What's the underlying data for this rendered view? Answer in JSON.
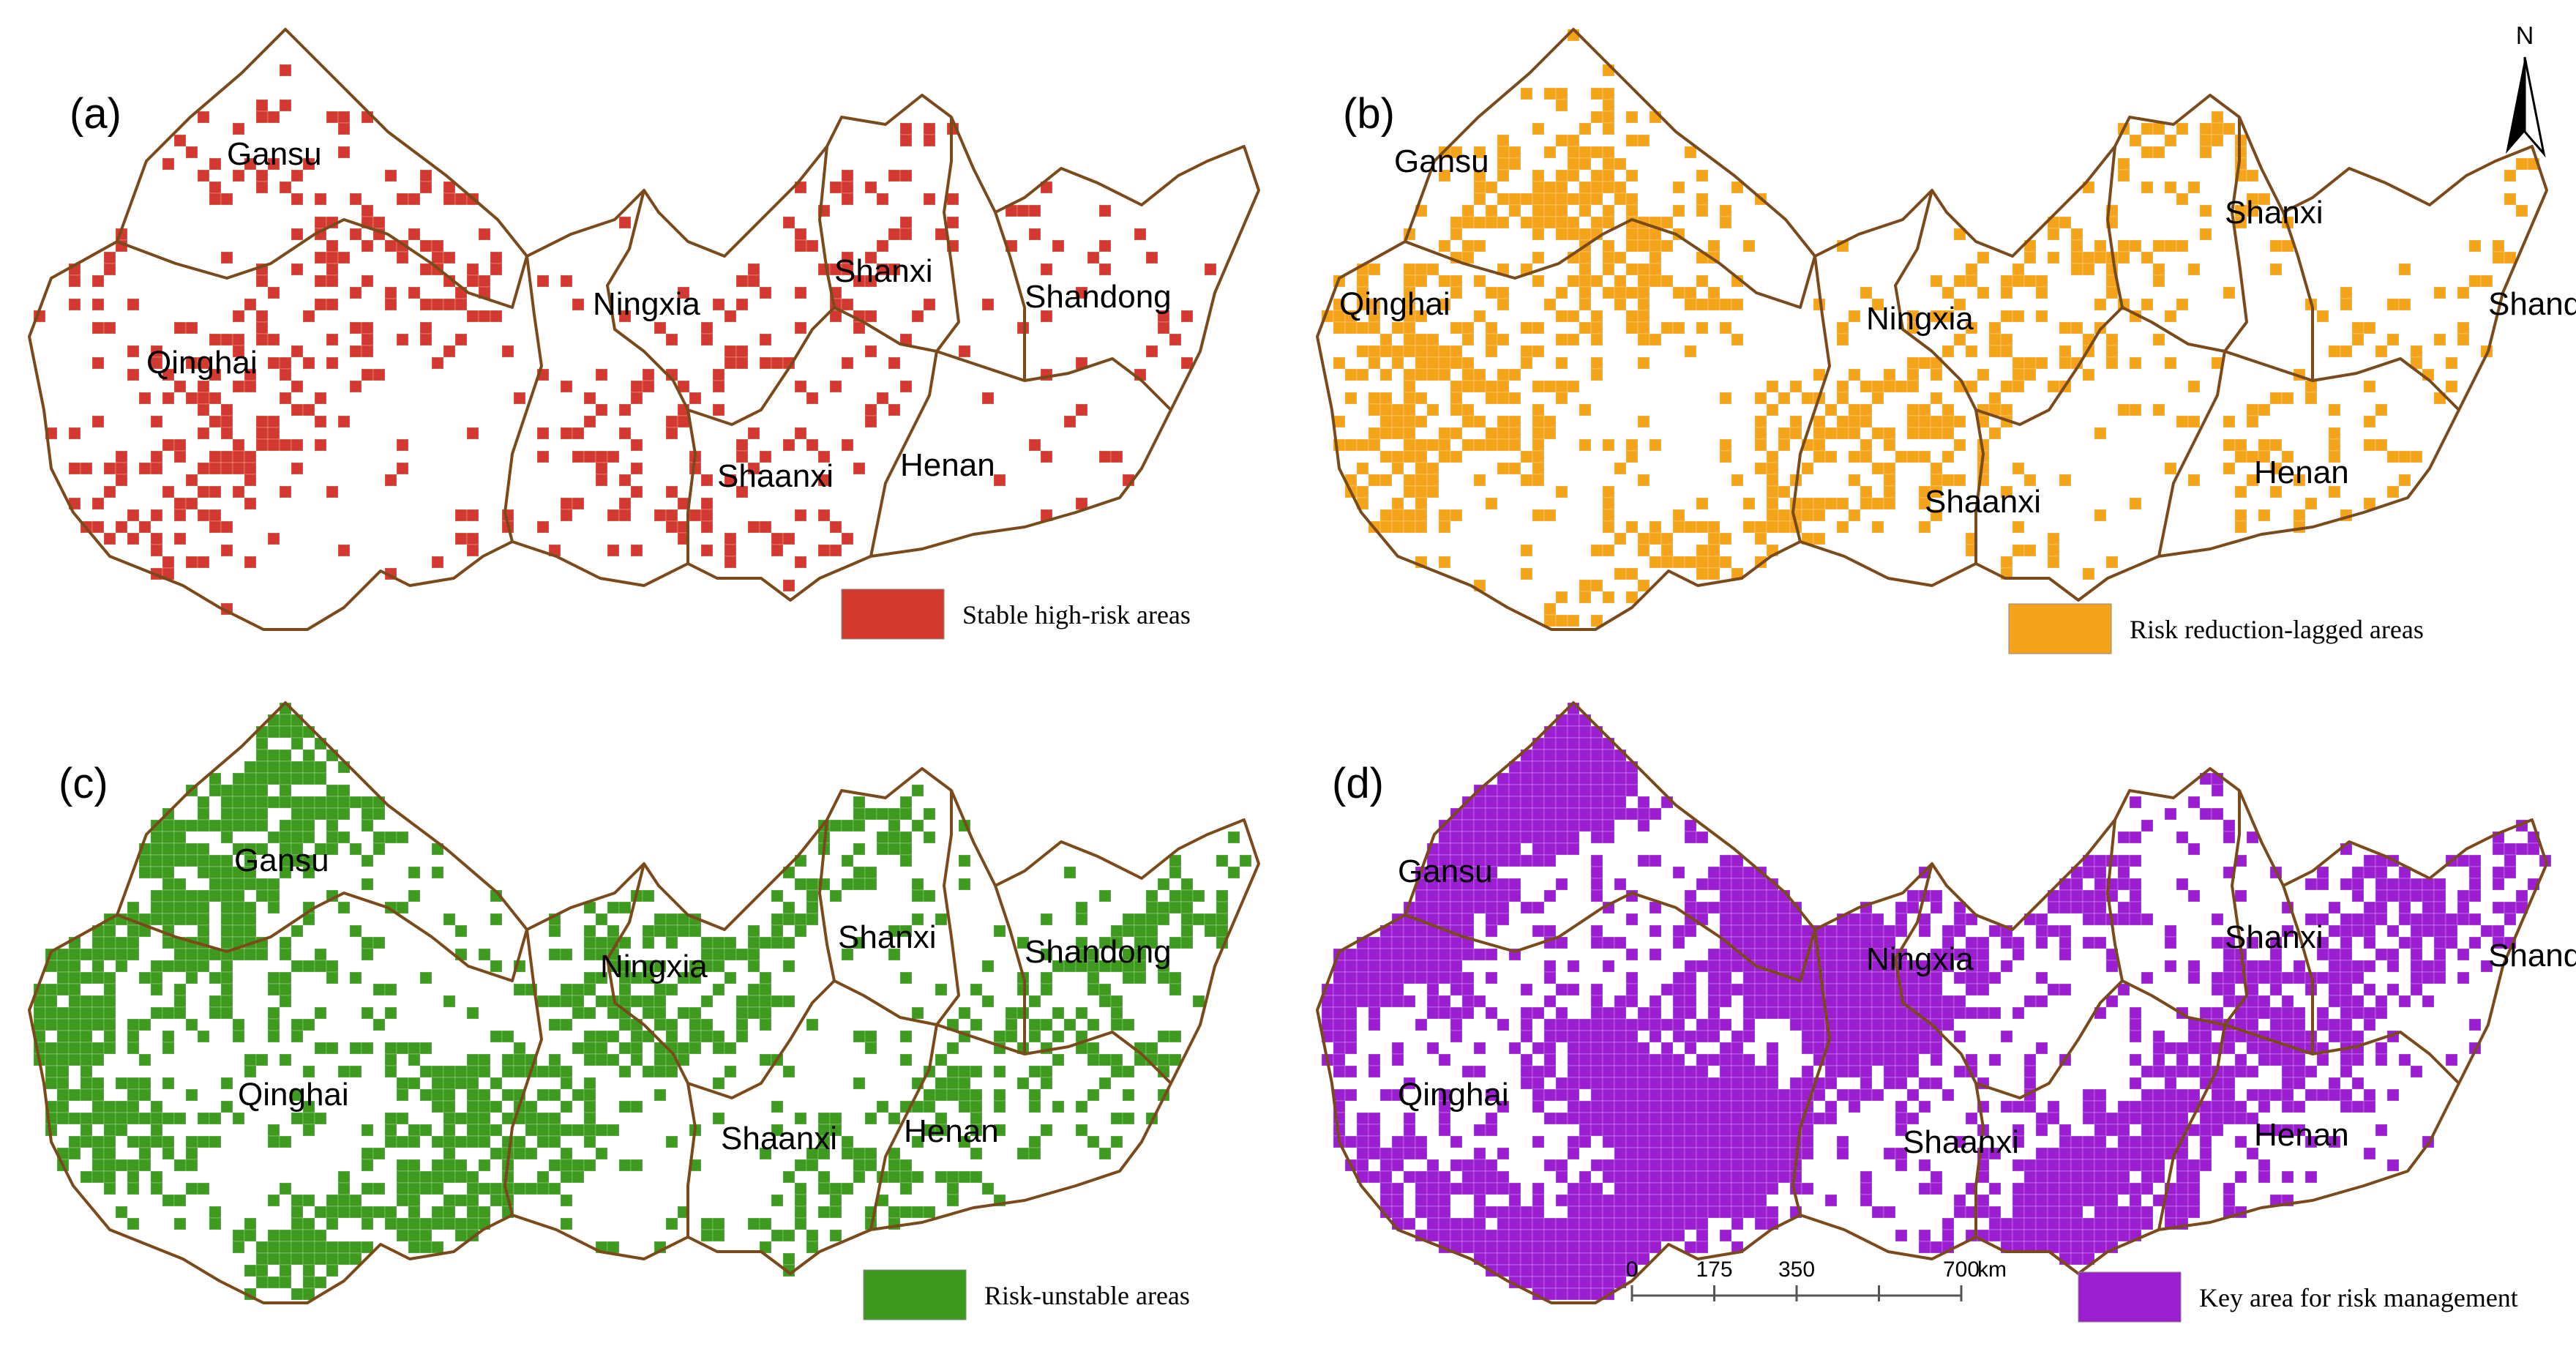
{
  "panels": [
    {
      "id": "a",
      "label": "(a)",
      "legend": "Stable high-risk areas",
      "color": "#d33a2f",
      "density": 0.14
    },
    {
      "id": "b",
      "label": "(b)",
      "legend": "Risk reduction-lagged areas",
      "color": "#f5a31b",
      "density": 0.22
    },
    {
      "id": "c",
      "label": "(c)",
      "legend": "Risk-unstable areas",
      "color": "#3d9a1f",
      "density": 0.3
    },
    {
      "id": "d",
      "label": "(d)",
      "legend": "Key area for risk management",
      "color": "#9b1fd1",
      "density": 0.55
    }
  ],
  "provinces": [
    "Gansu",
    "Qinghai",
    "Ningxia",
    "Shanxi",
    "Shandong",
    "Shaanxi",
    "Henan"
  ],
  "north_arrow": "N",
  "scale_bar": {
    "ticks": [
      "0",
      "175",
      "350",
      "700"
    ],
    "unit": "km"
  },
  "boundary_color": "#7a4a1a"
}
